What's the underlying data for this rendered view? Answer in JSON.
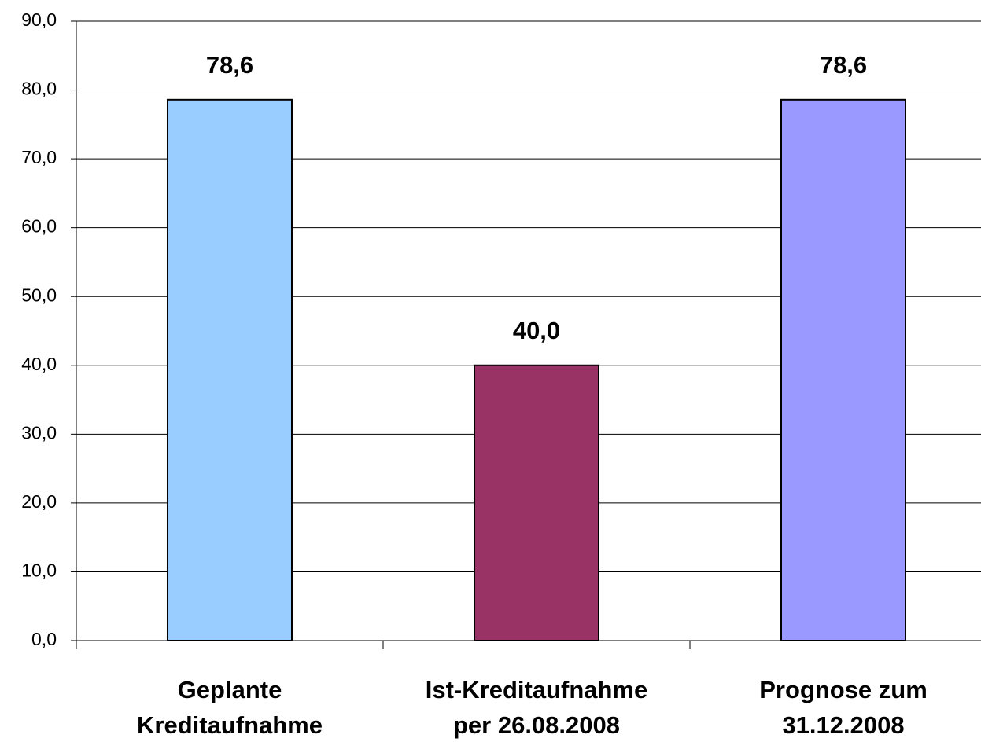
{
  "chart_data": {
    "type": "bar",
    "categories": [
      [
        "Geplante",
        "Kreditaufnahme"
      ],
      [
        "Ist-Kreditaufnahme",
        "per 26.08.2008"
      ],
      [
        "Prognose zum",
        "31.12.2008"
      ]
    ],
    "values": [
      78.6,
      40.0,
      78.6
    ],
    "value_labels": [
      "78,6",
      "40,0",
      "78,6"
    ],
    "colors": [
      "#99ccff",
      "#993366",
      "#9999ff"
    ],
    "ylim": [
      0,
      90
    ],
    "yticks": [
      {
        "value": 0,
        "label": "0,0"
      },
      {
        "value": 10,
        "label": "10,0"
      },
      {
        "value": 20,
        "label": "20,0"
      },
      {
        "value": 30,
        "label": "30,0"
      },
      {
        "value": 40,
        "label": "40,0"
      },
      {
        "value": 50,
        "label": "50,0"
      },
      {
        "value": 60,
        "label": "60,0"
      },
      {
        "value": 70,
        "label": "70,0"
      },
      {
        "value": 80,
        "label": "80,0"
      },
      {
        "value": 90,
        "label": "90,0"
      }
    ],
    "grid": true
  }
}
